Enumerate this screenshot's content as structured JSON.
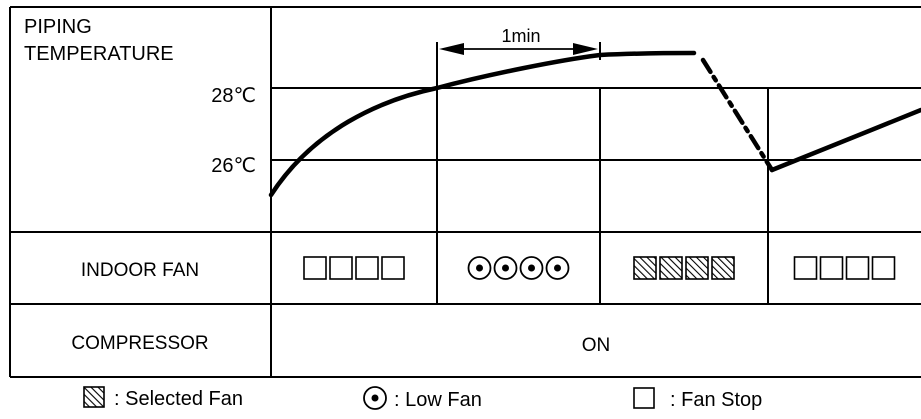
{
  "temperature_label": [
    "PIPING",
    "TEMPERATURE"
  ],
  "temperature_levels": [
    "28℃",
    "26℃"
  ],
  "time_marker": "1min",
  "rows": {
    "indoor_fan": "INDOOR FAN",
    "compressor": "COMPRESSOR",
    "compressor_state": "ON"
  },
  "fan_sequence": [
    {
      "mode": "stop",
      "count": 4
    },
    {
      "mode": "low",
      "count": 4
    },
    {
      "mode": "selected",
      "count": 4
    },
    {
      "mode": "stop",
      "count": 4
    }
  ],
  "legend": [
    {
      "mode": "selected",
      "label": ": Selected Fan"
    },
    {
      "mode": "low",
      "label": ": Low Fan"
    },
    {
      "mode": "stop",
      "label": ": Fan Stop"
    }
  ],
  "colors": {
    "line": "#000000",
    "background": "#ffffff"
  }
}
